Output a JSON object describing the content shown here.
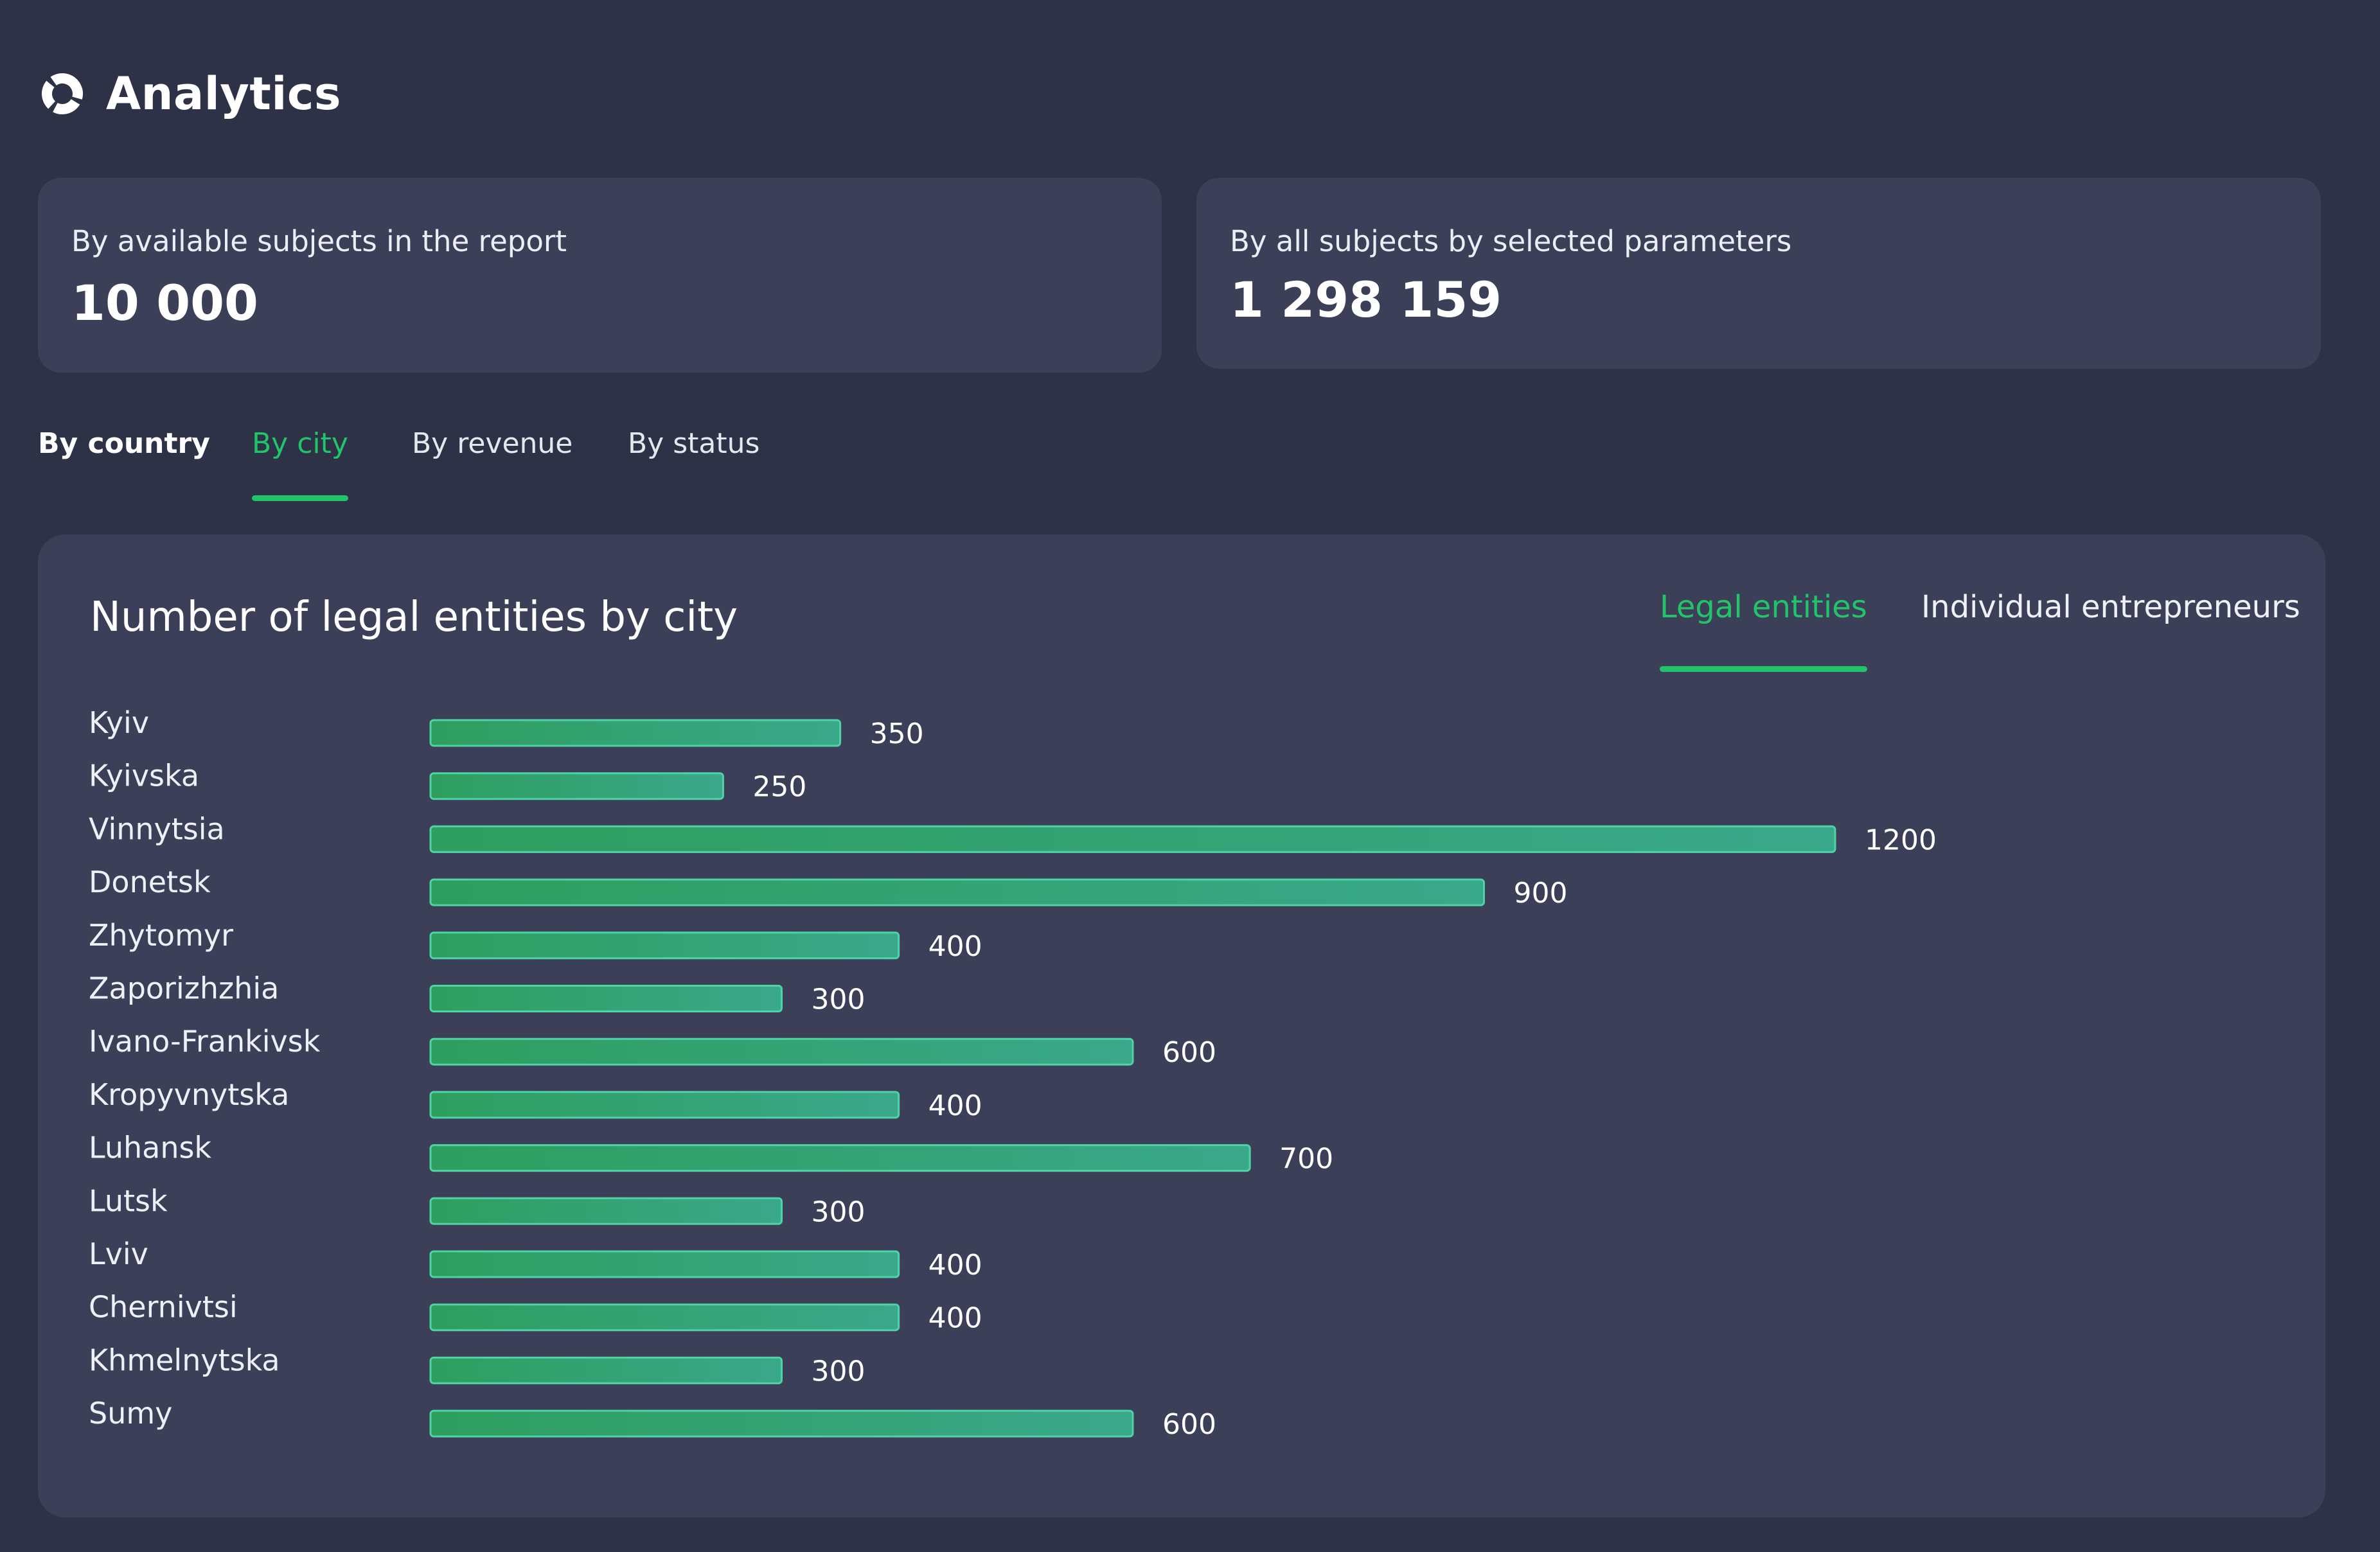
{
  "header": {
    "title": "Analytics",
    "icon": "donut-chart-icon"
  },
  "cards": [
    {
      "label": "By available subjects in the report",
      "value": "10 000"
    },
    {
      "label": "By all subjects by selected parameters",
      "value": "1 298 159"
    }
  ],
  "tabs": [
    {
      "label": "By country"
    },
    {
      "label": "By city",
      "active": true
    },
    {
      "label": "By revenue"
    },
    {
      "label": "By status"
    }
  ],
  "panel": {
    "title": "Number of legal entities by city",
    "toggle": [
      {
        "label": "Legal entities",
        "active": true
      },
      {
        "label": "Individual entrepreneurs"
      }
    ]
  },
  "colors": {
    "background": "#2e3246",
    "card": "#3c3f58",
    "accent": "#22c46a",
    "bar_start": "#2e9e5f",
    "bar_end": "#3aa88a"
  },
  "chart_data": {
    "type": "bar",
    "orientation": "horizontal",
    "categories": [
      "Kyiv",
      "Kyivska",
      "Vinnytsia",
      "Donetsk",
      "Zhytomyr",
      "Zaporizhzhia",
      "Ivano-Frankivsk",
      "Kropyvnytska",
      "Luhansk",
      "Lutsk",
      "Lviv",
      "Chernivtsi",
      "Khmelnytska",
      "Sumy"
    ],
    "values": [
      350,
      250,
      1200,
      900,
      400,
      300,
      600,
      400,
      700,
      300,
      400,
      400,
      300,
      600
    ],
    "value_labels": [
      "350",
      "250",
      "1200",
      "900",
      "400",
      "300",
      "600",
      "400",
      "700",
      "300",
      "400",
      "400",
      "300",
      "600"
    ],
    "xlim": [
      0,
      1200
    ],
    "grid": false
  }
}
